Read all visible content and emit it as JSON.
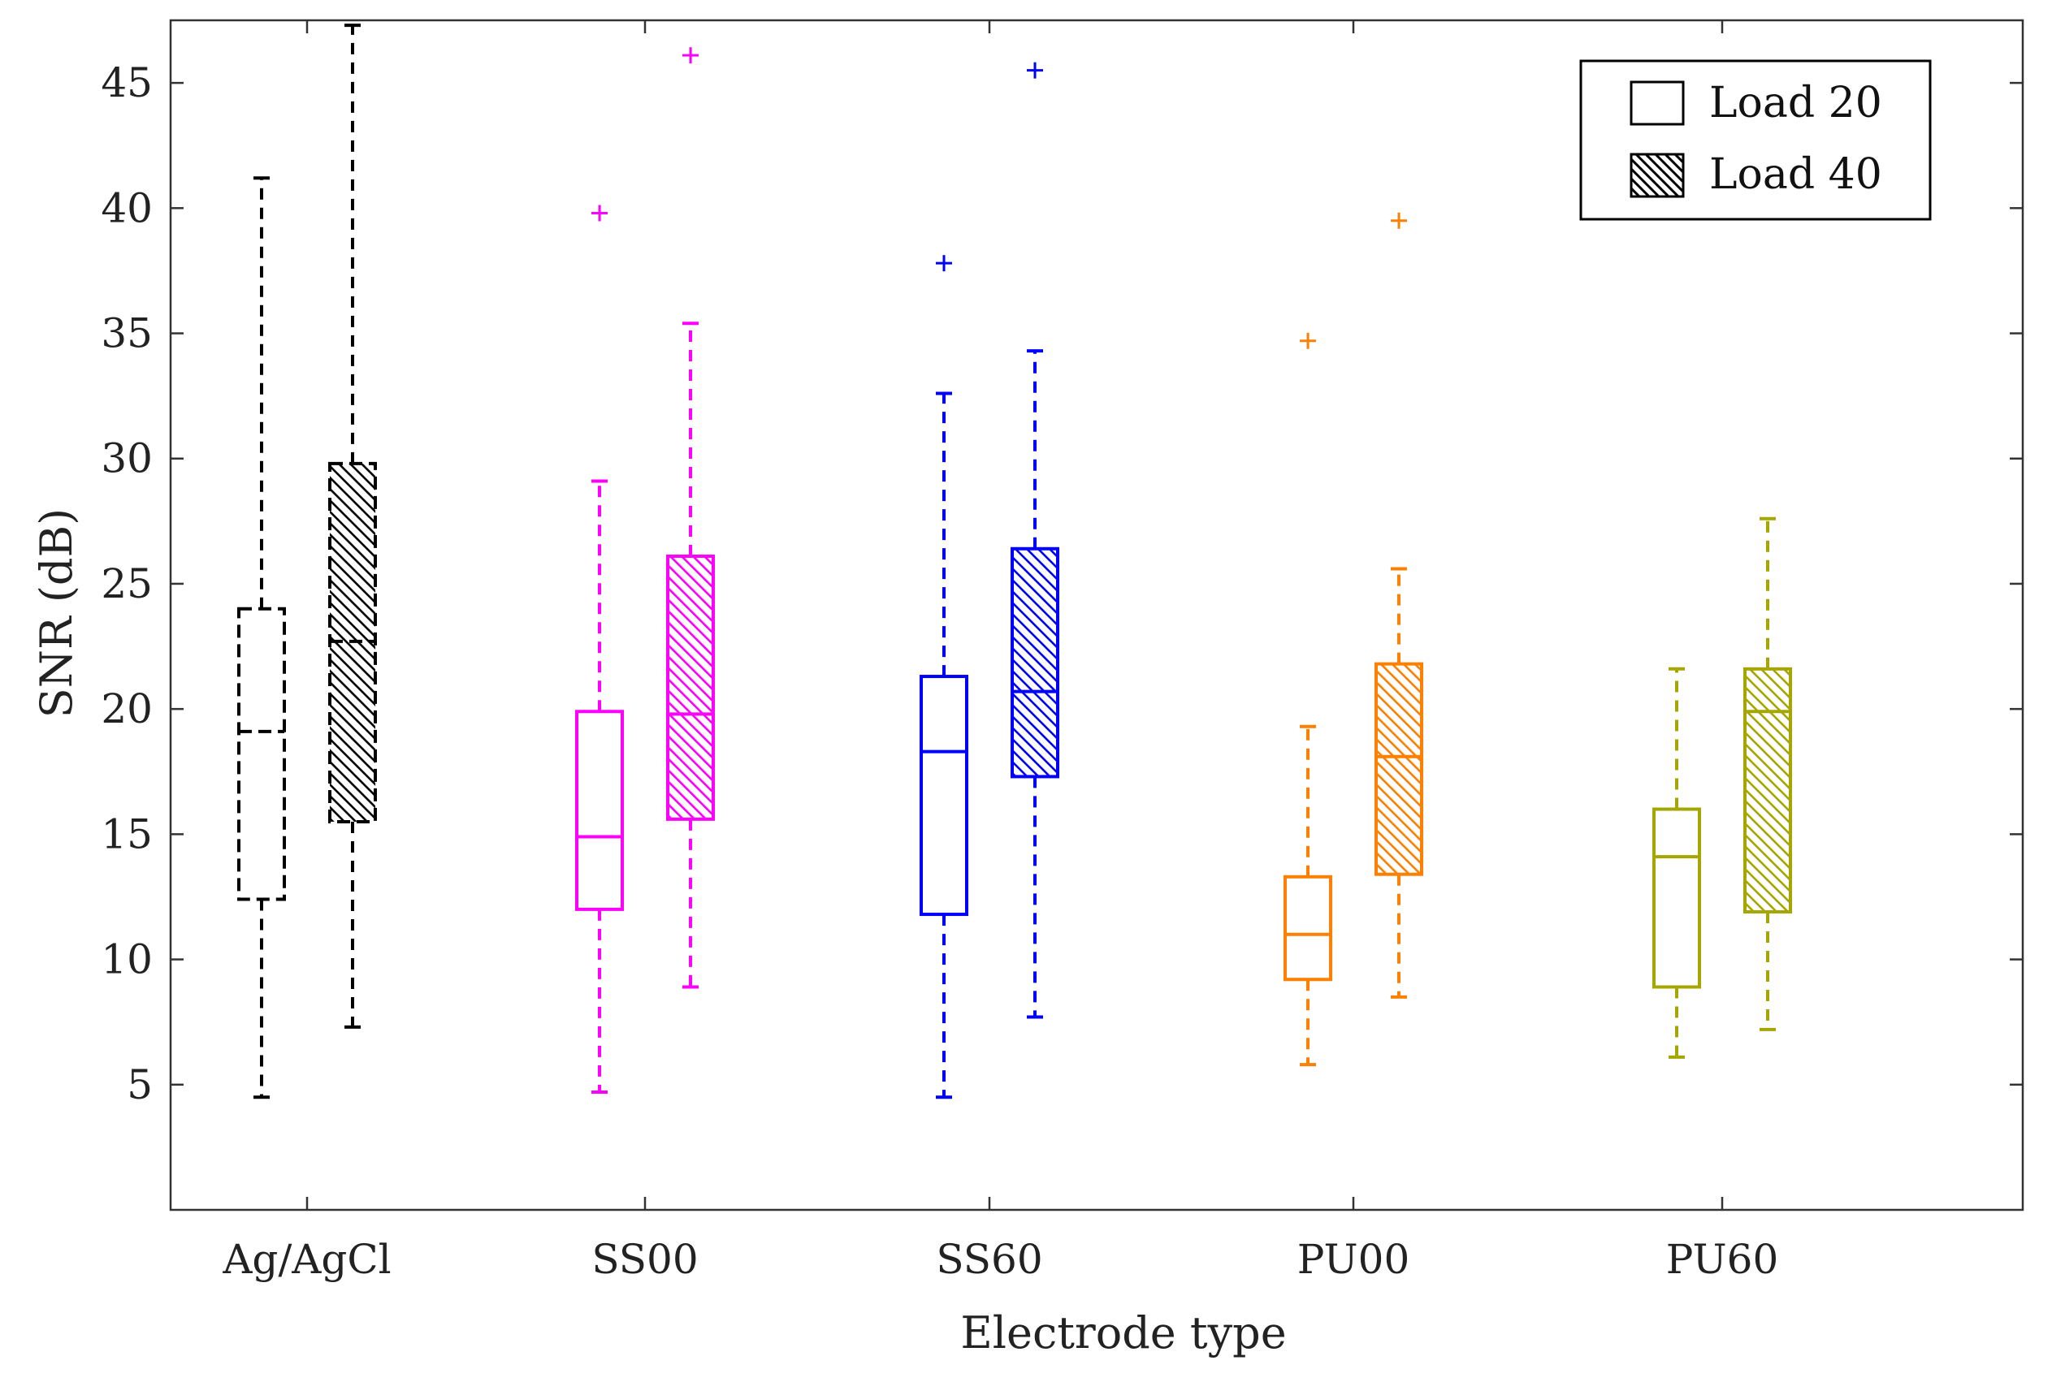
{
  "chart_data": {
    "type": "boxplot",
    "xlabel": "Electrode type",
    "ylabel": "SNR (dB)",
    "ylim": [
      0,
      47.5
    ],
    "yticks": [
      5,
      10,
      15,
      20,
      25,
      30,
      35,
      40,
      45
    ],
    "categories": [
      "Ag/AgCl",
      "SS00",
      "SS60",
      "PU00",
      "PU60"
    ],
    "series": [
      {
        "name": "Load 20",
        "pattern": "none"
      },
      {
        "name": "Load 40",
        "pattern": "hatch"
      }
    ],
    "groups": [
      {
        "category": "Ag/AgCl",
        "color": "#000000",
        "style": "dashed",
        "boxes": [
          {
            "series": "Load 20",
            "whisker_low": 4.5,
            "q1": 12.4,
            "median": 19.1,
            "q3": 24.0,
            "whisker_high": 41.2,
            "outliers": []
          },
          {
            "series": "Load 40",
            "whisker_low": 7.3,
            "q1": 15.5,
            "median": 22.7,
            "q3": 29.8,
            "whisker_high": 47.3,
            "outliers": []
          }
        ]
      },
      {
        "category": "SS00",
        "color": "#ff00ff",
        "style": "solid",
        "boxes": [
          {
            "series": "Load 20",
            "whisker_low": 4.7,
            "q1": 12.0,
            "median": 14.9,
            "q3": 19.9,
            "whisker_high": 29.1,
            "outliers": [
              39.8
            ]
          },
          {
            "series": "Load 40",
            "whisker_low": 8.9,
            "q1": 15.6,
            "median": 19.8,
            "q3": 26.1,
            "whisker_high": 35.4,
            "outliers": [
              46.1
            ]
          }
        ]
      },
      {
        "category": "SS60",
        "color": "#0000ff",
        "style": "solid",
        "boxes": [
          {
            "series": "Load 20",
            "whisker_low": 4.5,
            "q1": 11.8,
            "median": 18.3,
            "q3": 21.3,
            "whisker_high": 32.6,
            "outliers": [
              37.8
            ]
          },
          {
            "series": "Load 40",
            "whisker_low": 7.7,
            "q1": 17.3,
            "median": 20.7,
            "q3": 26.4,
            "whisker_high": 34.3,
            "outliers": [
              45.5
            ]
          }
        ]
      },
      {
        "category": "PU00",
        "color": "#ff8000",
        "style": "solid",
        "boxes": [
          {
            "series": "Load 20",
            "whisker_low": 5.8,
            "q1": 9.2,
            "median": 11.0,
            "q3": 13.3,
            "whisker_high": 19.3,
            "outliers": [
              34.7
            ]
          },
          {
            "series": "Load 40",
            "whisker_low": 8.5,
            "q1": 13.4,
            "median": 18.1,
            "q3": 21.8,
            "whisker_high": 25.6,
            "outliers": [
              39.5
            ]
          }
        ]
      },
      {
        "category": "PU60",
        "color": "#a6a600",
        "style": "solid",
        "boxes": [
          {
            "series": "Load 20",
            "whisker_low": 6.1,
            "q1": 8.9,
            "median": 14.1,
            "q3": 16.0,
            "whisker_high": 21.6,
            "outliers": []
          },
          {
            "series": "Load 40",
            "whisker_low": 7.2,
            "q1": 11.9,
            "median": 19.9,
            "q3": 21.6,
            "whisker_high": 27.6,
            "outliers": []
          }
        ]
      }
    ],
    "legend": {
      "position": "top-right",
      "entries": [
        "Load 20",
        "Load 40"
      ]
    }
  }
}
